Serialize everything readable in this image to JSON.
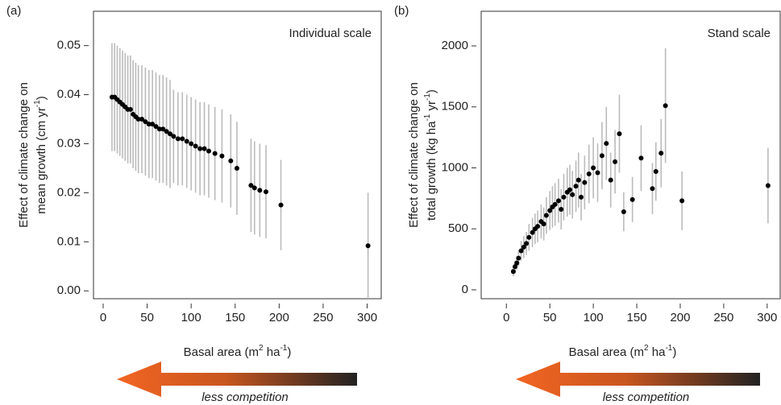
{
  "chart_data": [
    {
      "type": "scatter",
      "panel_label": "(a)",
      "annotation": "Individual scale",
      "xlabel": [
        "Basal area (m",
        "2",
        " ha",
        "-1",
        ")"
      ],
      "ylabel": [
        "Effect of climate change on",
        "mean growth (cm yr",
        "-1",
        ")"
      ],
      "arrow_label": "less competition",
      "xlim": [
        -11,
        316
      ],
      "ylim": [
        -0.0016,
        0.057
      ],
      "xticks": [
        0,
        50,
        100,
        150,
        200,
        250,
        300
      ],
      "yticks": [
        {
          "value": 0,
          "label": "0.00"
        },
        0.01,
        0.02,
        0.03,
        0.04,
        0.05
      ],
      "point_color": "#000000",
      "error_color": "#bbbbbb",
      "x": [
        10,
        13,
        16,
        19,
        22,
        25,
        28,
        31,
        34,
        37,
        40,
        44,
        48,
        52,
        56,
        60,
        64,
        68,
        72,
        76,
        80,
        85,
        90,
        95,
        100,
        105,
        110,
        115,
        120,
        127,
        135,
        145,
        152,
        168,
        172,
        178,
        185,
        202,
        301
      ],
      "values": [
        0.0395,
        0.0395,
        0.039,
        0.0385,
        0.038,
        0.0375,
        0.037,
        0.037,
        0.036,
        0.0355,
        0.035,
        0.035,
        0.0345,
        0.034,
        0.034,
        0.0335,
        0.033,
        0.033,
        0.0325,
        0.032,
        0.0315,
        0.031,
        0.031,
        0.0305,
        0.03,
        0.0295,
        0.029,
        0.029,
        0.0285,
        0.028,
        0.0275,
        0.0265,
        0.025,
        0.0215,
        0.021,
        0.0205,
        0.0202,
        0.0175,
        0.0092
      ],
      "errors": [
        0.011,
        0.011,
        0.011,
        0.011,
        0.011,
        0.011,
        0.011,
        0.011,
        0.011,
        0.011,
        0.011,
        0.011,
        0.011,
        0.011,
        0.011,
        0.011,
        0.011,
        0.011,
        0.011,
        0.011,
        0.0095,
        0.0095,
        0.0095,
        0.0095,
        0.0095,
        0.0095,
        0.0095,
        0.0095,
        0.0095,
        0.0095,
        0.0095,
        0.0095,
        0.0095,
        0.0095,
        0.0095,
        0.0095,
        0.0095,
        0.0092,
        0.0108
      ]
    },
    {
      "type": "scatter",
      "panel_label": "(b)",
      "annotation": "Stand scale",
      "xlabel": [
        "Basal area (m",
        "2",
        " ha",
        "-1",
        ")"
      ],
      "ylabel": [
        "Effect of climate change on",
        "total growth (kg ha",
        "-1",
        " yr",
        "-1",
        ")"
      ],
      "arrow_label": "less competition",
      "xlim": [
        -29,
        315
      ],
      "ylim": [
        -73,
        2284
      ],
      "xticks": [
        0,
        50,
        100,
        150,
        200,
        250,
        300
      ],
      "yticks": [
        0,
        500,
        1000,
        1500,
        2000
      ],
      "point_color": "#000000",
      "error_color": "#bbbbbb",
      "x": [
        8,
        10,
        12,
        14,
        17,
        20,
        23,
        26,
        30,
        33,
        36,
        40,
        43,
        46,
        50,
        53,
        56,
        60,
        63,
        66,
        70,
        73,
        76,
        80,
        83,
        86,
        90,
        95,
        100,
        105,
        110,
        115,
        120,
        125,
        130,
        135,
        145,
        155,
        168,
        172,
        178,
        183,
        202,
        301
      ],
      "values": [
        150,
        190,
        220,
        260,
        320,
        350,
        380,
        430,
        470,
        500,
        520,
        560,
        540,
        610,
        650,
        680,
        700,
        730,
        660,
        760,
        800,
        820,
        780,
        850,
        900,
        760,
        880,
        950,
        1000,
        960,
        1100,
        1200,
        900,
        1050,
        1280,
        640,
        740,
        1080,
        830,
        970,
        1120,
        1510,
        730,
        855
      ],
      "errors": [
        40,
        50,
        55,
        65,
        80,
        90,
        95,
        110,
        120,
        125,
        130,
        140,
        135,
        150,
        160,
        170,
        175,
        180,
        165,
        190,
        200,
        205,
        195,
        210,
        225,
        190,
        220,
        240,
        250,
        240,
        275,
        300,
        225,
        260,
        320,
        160,
        185,
        270,
        210,
        240,
        280,
        470,
        240,
        310
      ]
    }
  ]
}
